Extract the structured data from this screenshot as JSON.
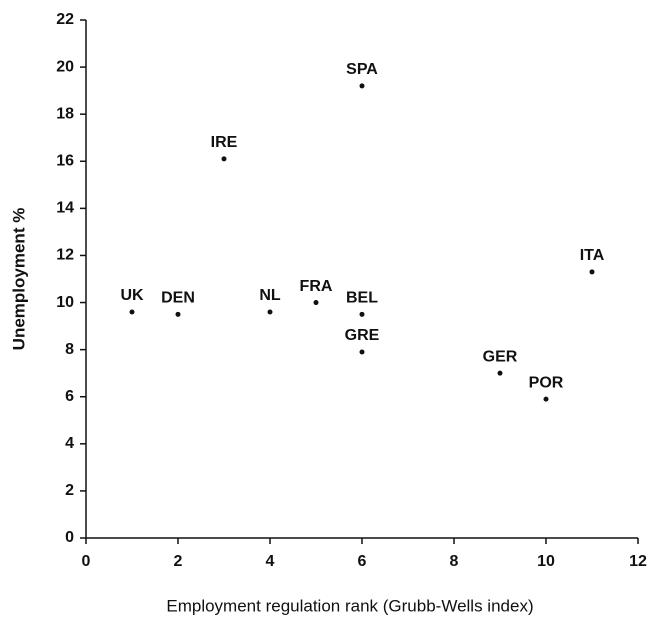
{
  "chart_data": {
    "type": "scatter",
    "x_label": "Employment regulation rank (Grubb-Wells index)",
    "y_label": "Unemployment %",
    "labels": [
      "UK",
      "DEN",
      "IRE",
      "NL",
      "FRA",
      "BEL",
      "GRE",
      "SPA",
      "GER",
      "POR",
      "ITA"
    ],
    "x": [
      1,
      2,
      3,
      4,
      5,
      6,
      6,
      6,
      9,
      10,
      11
    ],
    "values": [
      9.6,
      9.5,
      16.1,
      9.6,
      10.0,
      9.5,
      7.9,
      19.2,
      7.0,
      5.9,
      11.3
    ],
    "color": "#111111",
    "xlim": [
      0,
      12
    ],
    "ylim": [
      0,
      22
    ],
    "xticks": [
      0,
      2,
      4,
      6,
      8,
      10,
      12
    ],
    "yticks": [
      0,
      2,
      4,
      6,
      8,
      10,
      12,
      14,
      16,
      18,
      20,
      22
    ]
  }
}
